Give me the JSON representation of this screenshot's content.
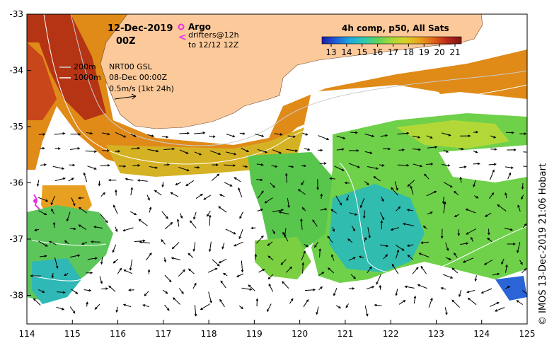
{
  "map": {
    "date": "12-Dec-2019",
    "hour": "00Z",
    "argo_label": "Argo",
    "drifters_label": "drifters@12h",
    "drifters_to": "to 12/12 12Z",
    "contour_200": "200m",
    "contour_1000": "1000m",
    "product": "NRT00 GSL",
    "product_date": "08-Dec 00:00Z",
    "vector_scale": "0.5m/s (1kt 24h)",
    "colorbar_title": "4h comp, p50, All Sats",
    "colorbar_ticks": [
      "13",
      "14",
      "15",
      "16",
      "17",
      "18",
      "19",
      "20",
      "21"
    ],
    "colorbar_colors": [
      "#1c1ca8",
      "#1d5fd6",
      "#1fa8e0",
      "#2ec9b2",
      "#5ed45a",
      "#a6d93a",
      "#d8d12a",
      "#eaa21c",
      "#e0641a",
      "#b8281a",
      "#7a1410"
    ],
    "lon_ticks": [
      "114",
      "115",
      "116",
      "117",
      "118",
      "119",
      "120",
      "121",
      "122",
      "123",
      "124",
      "125"
    ],
    "lat_ticks": [
      "-33",
      "-34",
      "-35",
      "-36",
      "-37",
      "-38"
    ],
    "credit": "© IMOS 13-Dec-2019 21:06 Hobart",
    "land_color": "#fbc99a",
    "argo_color": "#e830e8",
    "drifter_color": "#e830e8"
  }
}
